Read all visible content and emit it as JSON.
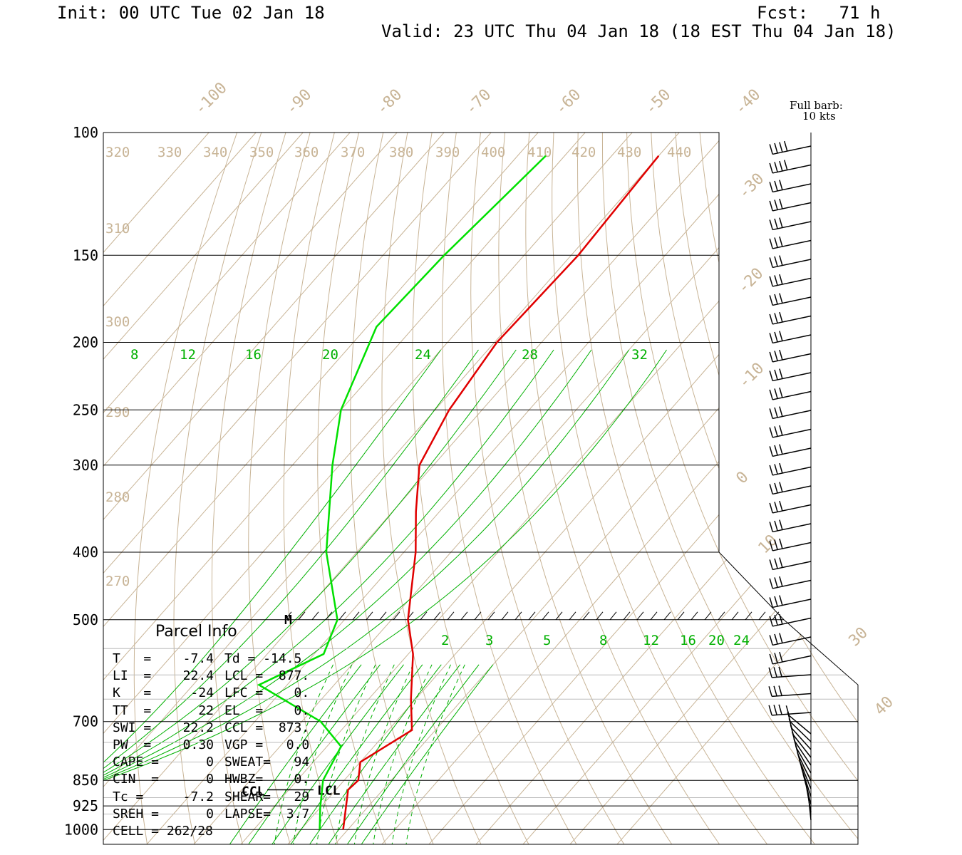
{
  "header": {
    "init": "Init: 00 UTC Tue 02 Jan 18",
    "fcst": "Fcst:   71 h",
    "valid": "Valid: 23 UTC Thu 04 Jan 18 (18 EST Thu 04 Jan 18)"
  },
  "barb_legend": {
    "line1": "Full barb:",
    "line2": "10 kts"
  },
  "colors": {
    "temperature": "#e00000",
    "dewpoint": "#00e000",
    "mixing_ratio": "#00b000",
    "isotherm_theta": "#c8b496",
    "frame": "#000000"
  },
  "chart_data": {
    "type": "line",
    "diagram": "Skew-T log-P",
    "pressure_levels_hPa": [
      100,
      150,
      200,
      250,
      300,
      400,
      500,
      700,
      850,
      925,
      1000
    ],
    "pressure_tick_labels": [
      "100",
      "150",
      "200",
      "250",
      "300",
      "400",
      "500",
      "700",
      "850",
      "925",
      "1000"
    ],
    "isotherm_labels_C": [
      "-100",
      "-90",
      "-80",
      "-70",
      "-60",
      "-50",
      "-40",
      "-30",
      "-20",
      "-10",
      "0",
      "10",
      "30",
      "40"
    ],
    "theta_labels_K": [
      "320",
      "330",
      "340",
      "350",
      "360",
      "370",
      "380",
      "390",
      "400",
      "410",
      "420",
      "430",
      "440",
      "310",
      "300",
      "290",
      "280",
      "270"
    ],
    "upper_mixing_ratio_labels": [
      "8",
      "12",
      "16",
      "20",
      "24",
      "28",
      "32"
    ],
    "lower_mixing_ratio_labels": [
      "2",
      "3",
      "5",
      "8",
      "12",
      "16",
      "20",
      "24"
    ],
    "series": [
      {
        "name": "Temperature",
        "points": [
          {
            "p": 108,
            "t": -60.0
          },
          {
            "p": 150,
            "t": -58.5
          },
          {
            "p": 200,
            "t": -59.5
          },
          {
            "p": 250,
            "t": -57.0
          },
          {
            "p": 300,
            "t": -53.0
          },
          {
            "p": 350,
            "t": -45.0
          },
          {
            "p": 400,
            "t": -37.5
          },
          {
            "p": 500,
            "t": -26.5
          },
          {
            "p": 560,
            "t": -19.0
          },
          {
            "p": 650,
            "t": -11.0
          },
          {
            "p": 720,
            "t": -5.0
          },
          {
            "p": 800,
            "t": -10.0
          },
          {
            "p": 850,
            "t": -7.0
          },
          {
            "p": 877,
            "t": -7.4
          },
          {
            "p": 1000,
            "t": -1.0
          }
        ]
      },
      {
        "name": "Dewpoint",
        "points": [
          {
            "p": 108,
            "t": -84.0
          },
          {
            "p": 150,
            "t": -87.0
          },
          {
            "p": 190,
            "t": -88.0
          },
          {
            "p": 250,
            "t": -80.0
          },
          {
            "p": 300,
            "t": -71.5
          },
          {
            "p": 400,
            "t": -56.5
          },
          {
            "p": 500,
            "t": -41.5
          },
          {
            "p": 560,
            "t": -38.0
          },
          {
            "p": 620,
            "t": -46.0
          },
          {
            "p": 700,
            "t": -26.0
          },
          {
            "p": 760,
            "t": -17.0
          },
          {
            "p": 850,
            "t": -14.5
          },
          {
            "p": 930,
            "t": -10.0
          },
          {
            "p": 1000,
            "t": -6.0
          }
        ]
      }
    ],
    "level_markers": [
      {
        "name": "M",
        "p": 500,
        "t": -54.0
      },
      {
        "name": "LCL",
        "p": 877
      },
      {
        "name": "CCL",
        "p": 873
      }
    ],
    "wind_profile_note": "wind barbs at right, Full barb: 10 kts"
  },
  "parcel_info": {
    "title": "Parcel Info",
    "rows": [
      [
        "T   =",
        "-7.4",
        "Td = -14.5"
      ],
      [
        "LI  =",
        "22.4",
        "LCL =  877."
      ],
      [
        "K   =",
        "-24",
        "LFC =    0."
      ],
      [
        "TT  =",
        "22",
        "EL  =    0."
      ],
      [
        "SWI =",
        "22.2",
        "CCL =  873."
      ],
      [
        "PW  =",
        "0.30",
        "VGP =   0.0"
      ],
      [
        "CAPE =",
        "0",
        "SWEAT=   94"
      ],
      [
        "CIN  =",
        "0",
        "HWBZ=    0."
      ],
      [
        "Tc =",
        "-7.2",
        "SHEAR=   29"
      ],
      [
        "SREH =",
        "0",
        "LAPSE=  3.7"
      ],
      [
        "CELL = 262/28",
        "",
        ""
      ]
    ]
  }
}
